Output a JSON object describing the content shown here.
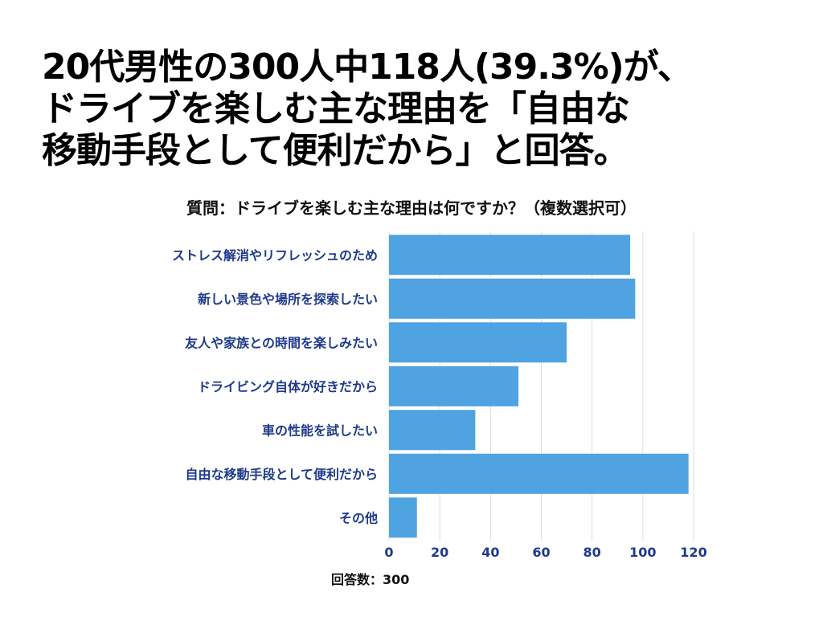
{
  "headline": {
    "line1": "20代男性の300人中118人(39.3%)が、",
    "line2": "ドライブを楽しむ主な理由を「自由な",
    "line3": "移動手段として便利だから」と回答。"
  },
  "footer": {
    "respondents": "回答数：300"
  },
  "colors": {
    "bar": "#4fa3e0",
    "label": "#1f3a8a",
    "grid": "#dddddd"
  },
  "chart_data": {
    "type": "bar",
    "orientation": "horizontal",
    "title": "質問：ドライブを楽しむ主な理由は何ですか？（複数選択可）",
    "categories": [
      "ストレス解消やリフレッシュのため",
      "新しい景色や場所を探索したい",
      "友人や家族との時間を楽しみたい",
      "ドライビング自体が好きだから",
      "車の性能を試したい",
      "自由な移動手段として便利だから",
      "その他"
    ],
    "values": [
      95,
      97,
      70,
      51,
      34,
      118,
      11
    ],
    "xlim": [
      0,
      120
    ],
    "xticks": [
      0,
      20,
      40,
      60,
      80,
      100,
      120
    ],
    "grid": true
  }
}
